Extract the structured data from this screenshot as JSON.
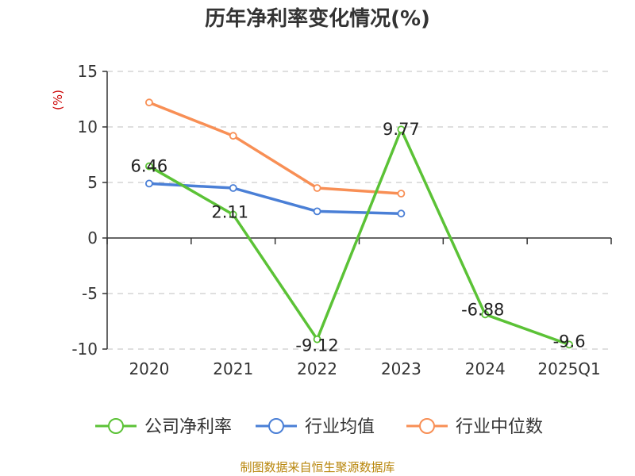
{
  "chart_data": {
    "type": "line",
    "title": "历年净利率变化情况(%)",
    "unit_label": "(%)",
    "categories": [
      "2020",
      "2021",
      "2022",
      "2023",
      "2024",
      "2025Q1"
    ],
    "ylim": [
      -10,
      15
    ],
    "yticks": [
      15,
      10,
      5,
      0,
      -5,
      -10
    ],
    "grid": true,
    "legend_position": "bottom",
    "series": [
      {
        "name": "公司净利率",
        "color": "#5bc236",
        "values": [
          6.46,
          2.11,
          -9.12,
          9.77,
          -6.88,
          -9.6
        ],
        "labels": [
          "6.46",
          "2.11",
          "-9.12",
          "9.77",
          "-6.88",
          "-9.6"
        ]
      },
      {
        "name": "行业均值",
        "color": "#4a7fd6",
        "values": [
          4.9,
          4.5,
          2.4,
          2.2,
          null,
          null
        ],
        "labels": []
      },
      {
        "name": "行业中位数",
        "color": "#f88f55",
        "values": [
          12.2,
          9.2,
          4.5,
          4.0,
          null,
          null
        ],
        "labels": []
      }
    ]
  },
  "source_text": "制图数据来自恒生聚源数据库"
}
